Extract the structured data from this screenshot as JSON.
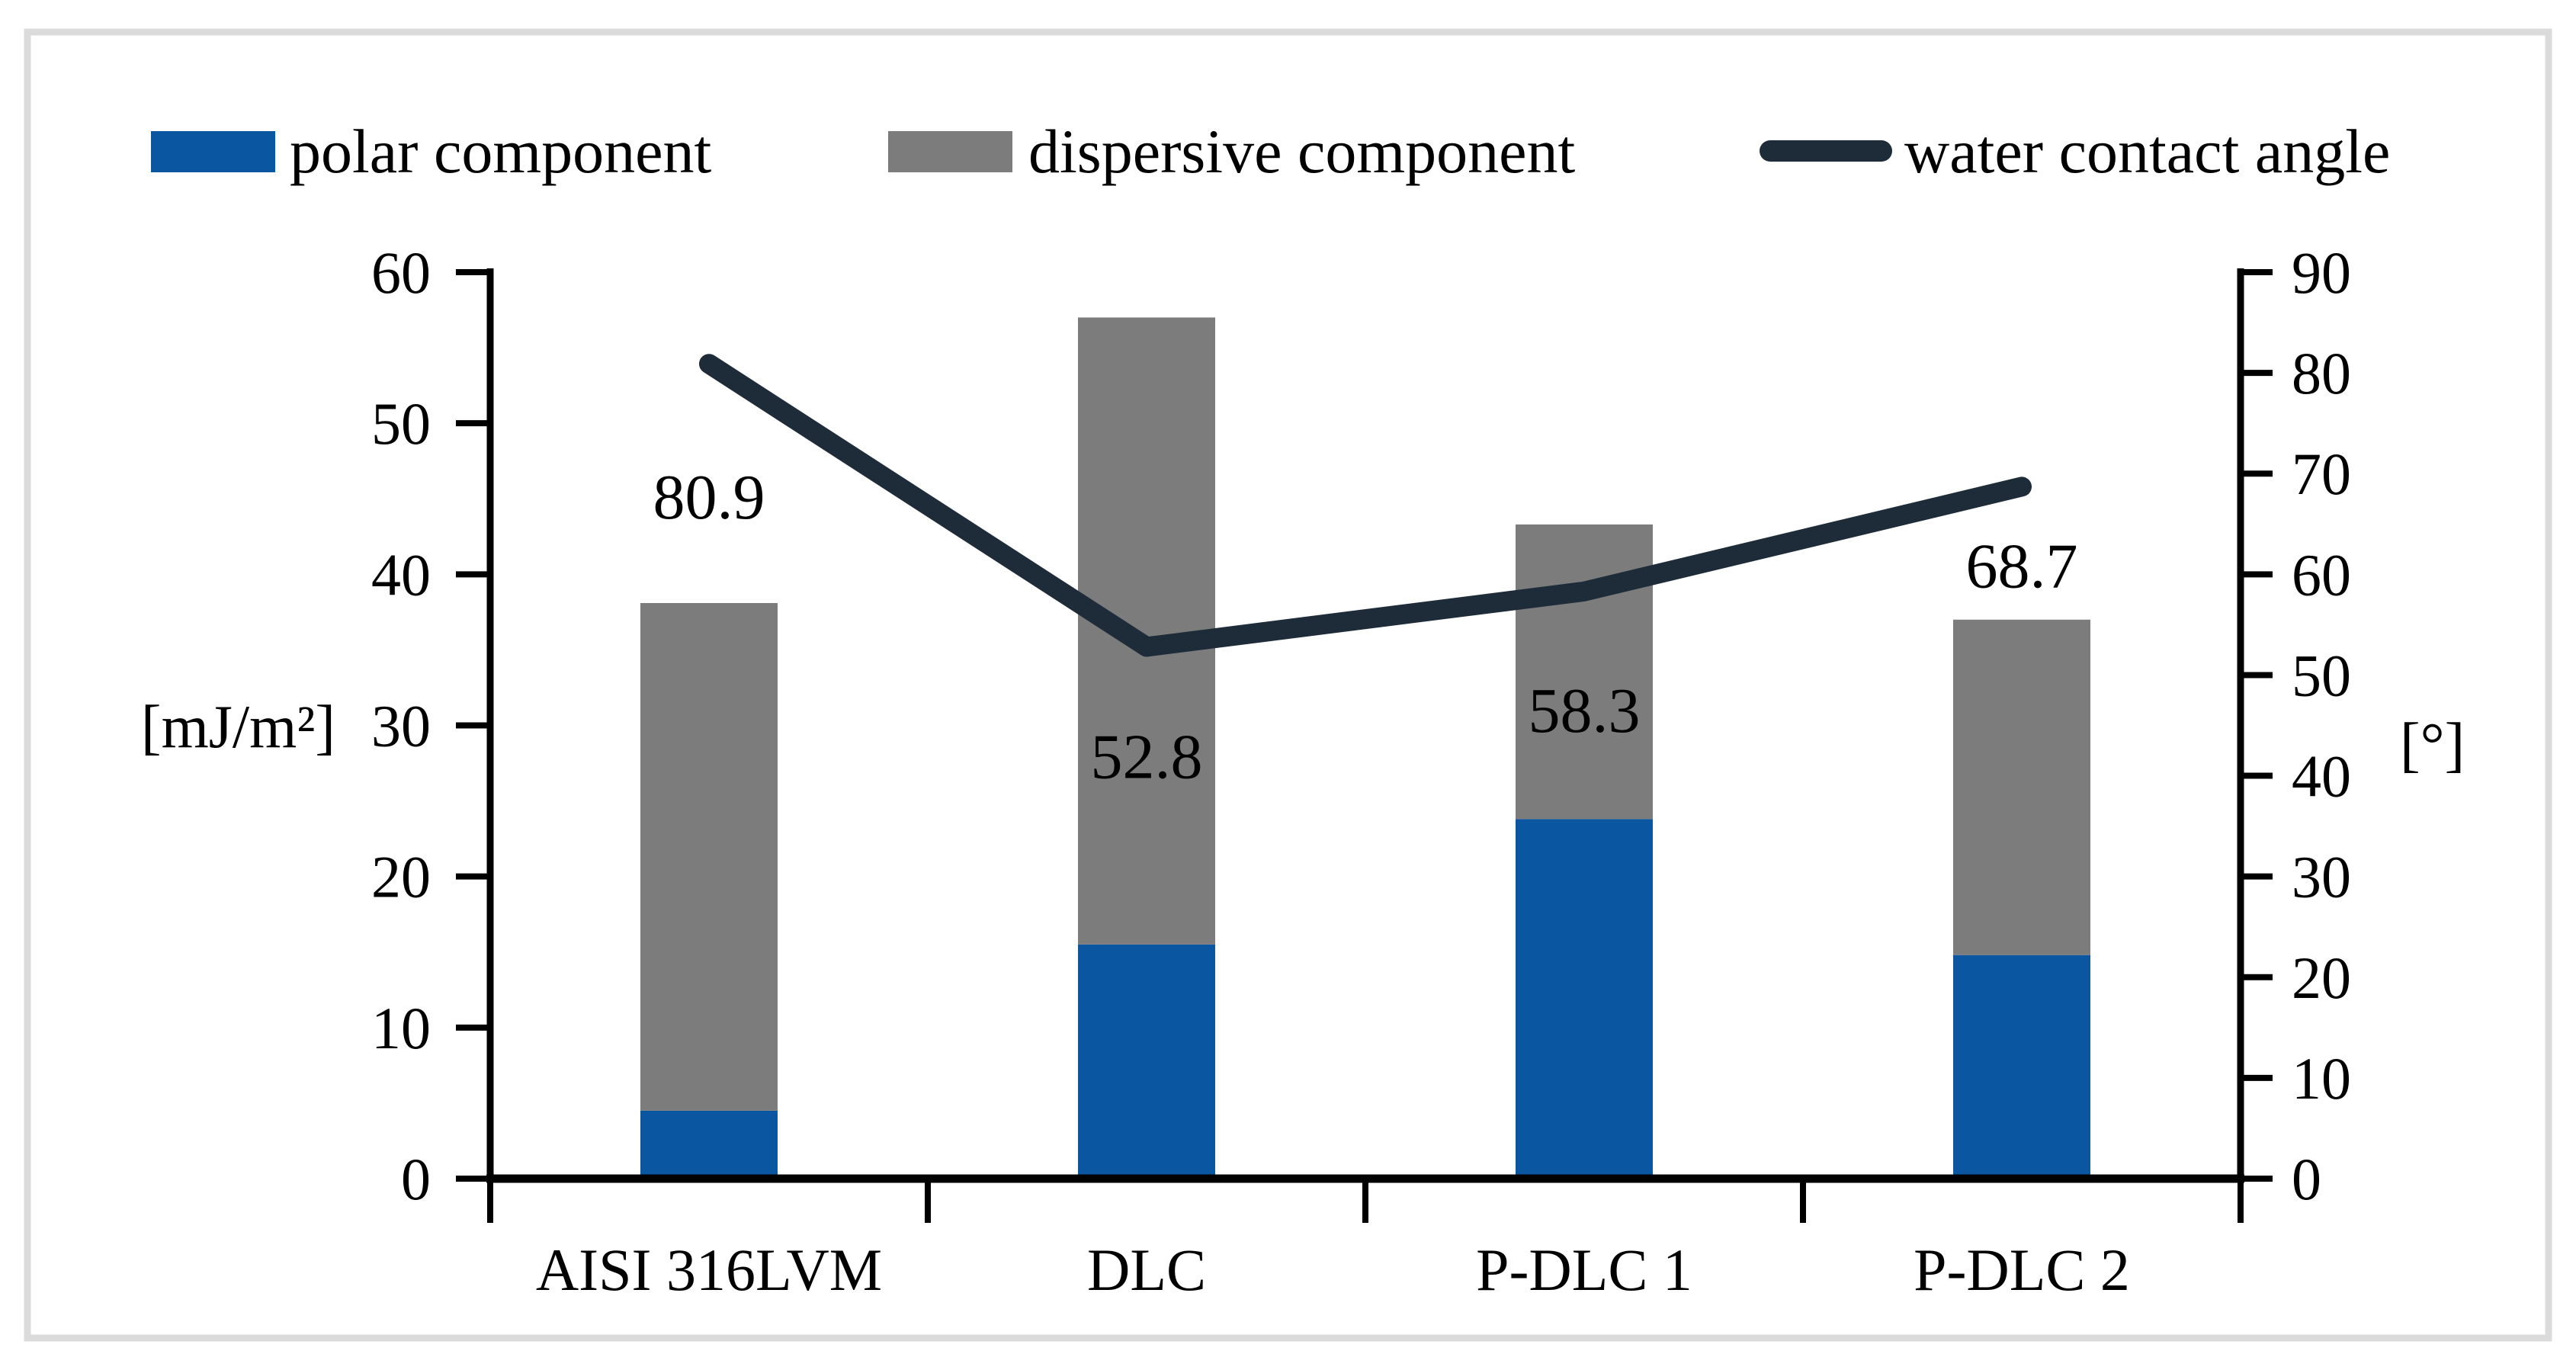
{
  "chart_data": {
    "type": "combo-stacked-bar-line",
    "categories": [
      "AISI 316LVM",
      "DLC",
      "P-DLC 1",
      "P-DLC 2"
    ],
    "series": [
      {
        "name": "polar component",
        "type": "bar-stack",
        "color": "#0B56A0",
        "axis": "left",
        "values": [
          4.5,
          15.5,
          23.8,
          14.8
        ]
      },
      {
        "name": "dispersive component",
        "type": "bar-stack",
        "color": "#7C7C7C",
        "axis": "left",
        "values": [
          33.6,
          41.5,
          19.5,
          22.2
        ]
      },
      {
        "name": "water contact angle",
        "type": "line",
        "color": "#1E2B38",
        "axis": "right",
        "values": [
          80.9,
          52.8,
          58.3,
          68.7
        ],
        "data_labels": [
          "80.9",
          "52.8",
          "58.3",
          "68.7"
        ]
      }
    ],
    "stack_totals": [
      38.1,
      57.0,
      43.3,
      37.0
    ],
    "left_axis": {
      "label": "[mJ/m²]",
      "min": 0,
      "max": 60,
      "step": 10,
      "ticks": [
        "0",
        "10",
        "20",
        "30",
        "40",
        "50",
        "60"
      ]
    },
    "right_axis": {
      "label": "[°]",
      "min": 0,
      "max": 90,
      "step": 10,
      "ticks": [
        "0",
        "10",
        "20",
        "30",
        "40",
        "50",
        "60",
        "70",
        "80",
        "90"
      ]
    },
    "grid": "off",
    "legend_position": "top",
    "frame_color": "#DBDBDB",
    "axis_color": "#000000"
  }
}
